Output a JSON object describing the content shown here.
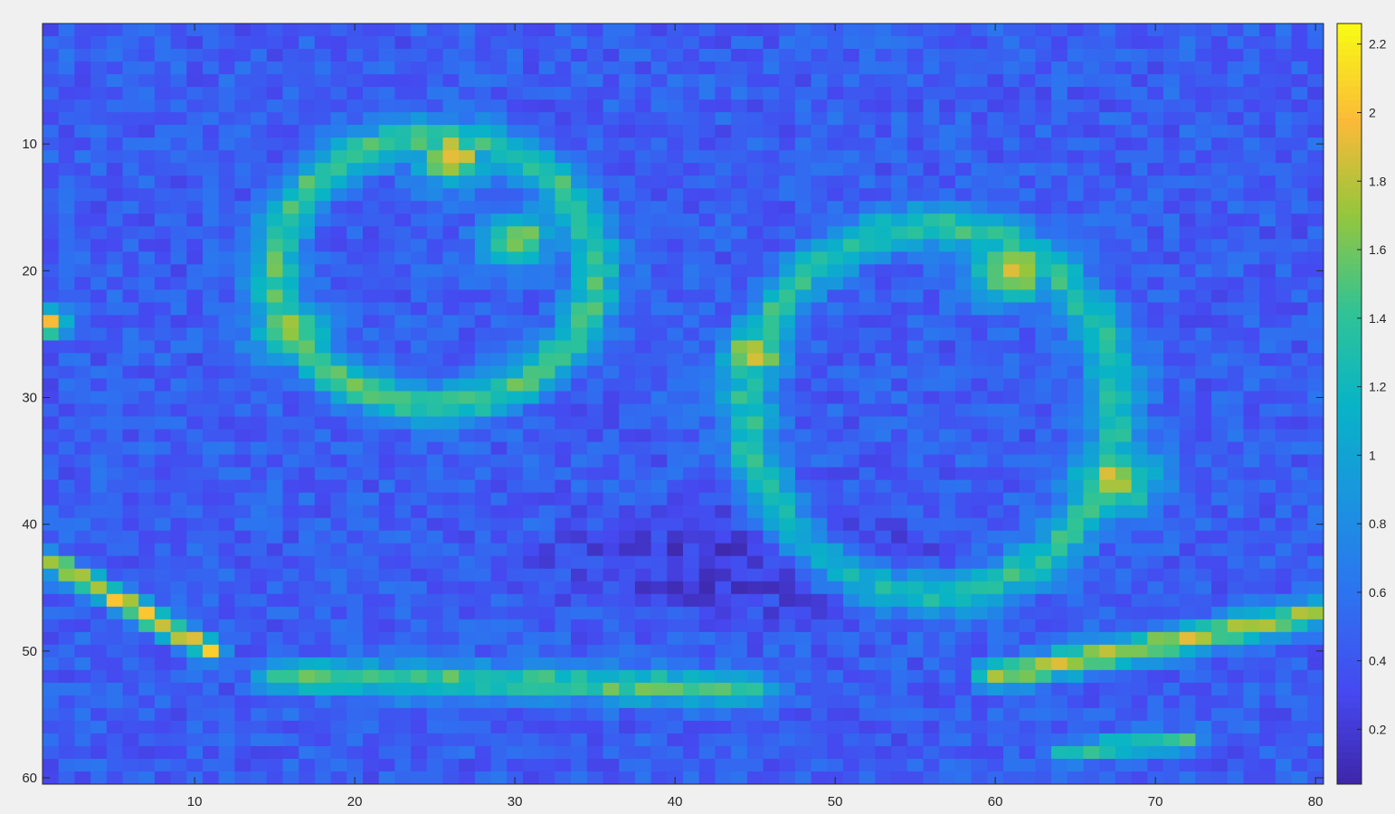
{
  "window": {
    "background": "#f0f0f0"
  },
  "chart_data": {
    "type": "heatmap",
    "title": "",
    "xlabel": "",
    "ylabel": "",
    "colormap": "parula",
    "x_ticks": [
      10,
      20,
      30,
      40,
      50,
      60,
      70,
      80
    ],
    "y_ticks": [
      10,
      20,
      30,
      40,
      50,
      60
    ],
    "xlim": [
      1,
      80
    ],
    "ylim": [
      1,
      60
    ],
    "y_direction": "reverse",
    "colorbar": {
      "ticks": [
        0.2,
        0.4,
        0.6,
        0.8,
        1,
        1.2,
        1.4,
        1.6,
        1.8,
        2,
        2.2
      ],
      "range": [
        0.04,
        2.26
      ],
      "placement": "right"
    },
    "grid": false,
    "grid_size": {
      "cols": 80,
      "rows": 60
    },
    "features": [
      {
        "shape": "ring",
        "cx": 25,
        "cy": 20,
        "rx": 10,
        "ry": 10.5,
        "value": 1.45,
        "width": 1.1
      },
      {
        "shape": "ring",
        "cx": 56,
        "cy": 31,
        "rx": 11.5,
        "ry": 14.5,
        "value": 1.35,
        "width": 1.2
      },
      {
        "shape": "line",
        "x1": 1,
        "y1": 43,
        "x2": 11,
        "y2": 50,
        "value": 1.9,
        "width": 0.6
      },
      {
        "shape": "line",
        "x1": 15,
        "y1": 52,
        "x2": 45,
        "y2": 53,
        "value": 1.5,
        "width": 0.9
      },
      {
        "shape": "line",
        "x1": 60,
        "y1": 52,
        "x2": 80,
        "y2": 47,
        "value": 1.75,
        "width": 0.8
      },
      {
        "shape": "line",
        "x1": 64,
        "y1": 58,
        "x2": 72,
        "y2": 57,
        "value": 1.4,
        "width": 0.6
      },
      {
        "shape": "blob",
        "cx": 45,
        "cy": 26.5,
        "r": 1.3,
        "value": 2.0
      },
      {
        "shape": "blob",
        "cx": 67.5,
        "cy": 36.5,
        "r": 1.8,
        "value": 1.85
      },
      {
        "shape": "blob",
        "cx": 30,
        "cy": 17.5,
        "r": 1.4,
        "value": 1.8
      },
      {
        "shape": "blob",
        "cx": 16,
        "cy": 25,
        "r": 1.6,
        "value": 1.8
      },
      {
        "shape": "blob",
        "cx": 1,
        "cy": 24,
        "r": 0.8,
        "value": 2.1
      },
      {
        "shape": "blob",
        "cx": 26,
        "cy": 11,
        "r": 1.5,
        "value": 2.0
      },
      {
        "shape": "blob",
        "cx": 61,
        "cy": 20,
        "r": 1.8,
        "value": 1.85
      }
    ],
    "background_value": 0.45,
    "dark_region": {
      "cx": 45,
      "cy": 43,
      "rx": 16,
      "ry": 6,
      "value": 0.22
    },
    "noise_amplitude": 0.18
  }
}
